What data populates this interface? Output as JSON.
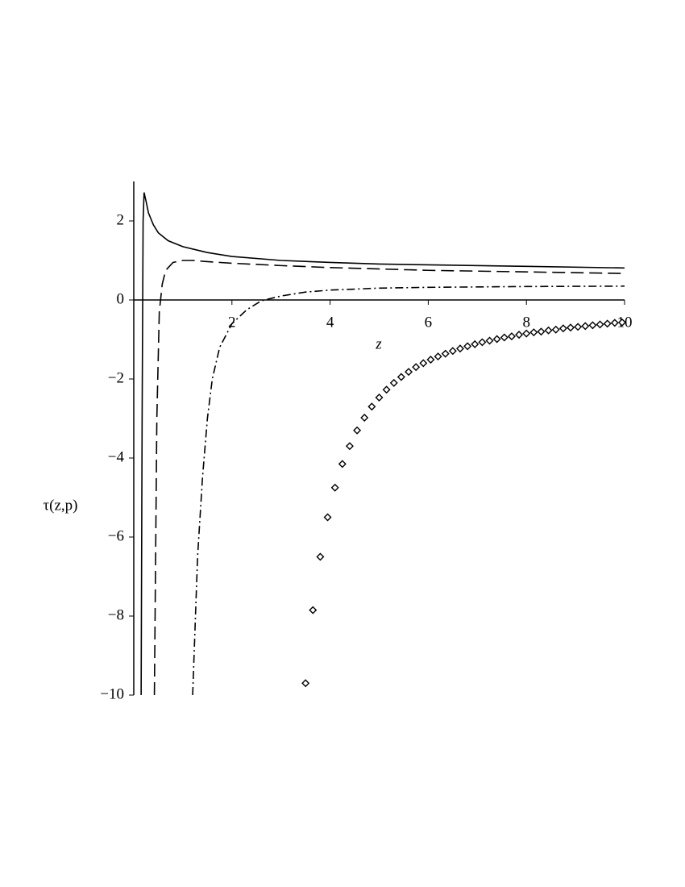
{
  "chart_data": {
    "type": "line",
    "xlabel": "z",
    "ylabel": "τ(z,p)",
    "xlim": [
      0,
      10
    ],
    "ylim": [
      -10,
      3
    ],
    "xticks": [
      2,
      4,
      6,
      8,
      10
    ],
    "yticks": [
      {
        "value": -10,
        "label": "−10"
      },
      {
        "value": -8,
        "label": "−8"
      },
      {
        "value": -6,
        "label": "−6"
      },
      {
        "value": -4,
        "label": "−4"
      },
      {
        "value": -2,
        "label": "−2"
      },
      0,
      2
    ],
    "series": [
      {
        "type": "line",
        "dash": "solid",
        "color": "#000000",
        "x": [
          0.15,
          0.17,
          0.19,
          0.21,
          0.25,
          0.3,
          0.4,
          0.5,
          0.7,
          1,
          1.5,
          2,
          3,
          4,
          5,
          6,
          8,
          10
        ],
        "values": [
          -10,
          -3,
          2,
          2.72,
          2.5,
          2.2,
          1.9,
          1.7,
          1.5,
          1.35,
          1.2,
          1.1,
          1.0,
          0.95,
          0.91,
          0.89,
          0.85,
          0.81
        ]
      },
      {
        "type": "line",
        "dash": "dashed",
        "color": "#000000",
        "x": [
          0.42,
          0.47,
          0.52,
          0.58,
          0.65,
          0.8,
          1,
          1.2,
          1.5,
          2,
          3,
          4,
          6,
          8,
          10
        ],
        "values": [
          -10,
          -3,
          -0.3,
          0.4,
          0.75,
          0.95,
          1.0,
          1.0,
          0.97,
          0.93,
          0.87,
          0.82,
          0.75,
          0.71,
          0.67
        ]
      },
      {
        "type": "line",
        "dash": "dashdot",
        "color": "#000000",
        "x": [
          1.2,
          1.3,
          1.4,
          1.5,
          1.6,
          1.75,
          2,
          2.3,
          2.6,
          3,
          3.5,
          4,
          5,
          6,
          8,
          10
        ],
        "values": [
          -10,
          -6.5,
          -4.5,
          -3,
          -2,
          -1.2,
          -0.6,
          -0.25,
          -0.02,
          0.1,
          0.2,
          0.25,
          0.3,
          0.32,
          0.34,
          0.35
        ]
      },
      {
        "type": "scatter",
        "marker": "diamond",
        "color": "#000000",
        "x": [
          3.5,
          3.65,
          3.8,
          3.95,
          4.1,
          4.25,
          4.4,
          4.55,
          4.7,
          4.85,
          5.0,
          5.15,
          5.3,
          5.45,
          5.6,
          5.75,
          5.9,
          6.05,
          6.2,
          6.35,
          6.5,
          6.65,
          6.8,
          6.95,
          7.1,
          7.25,
          7.4,
          7.55,
          7.7,
          7.85,
          8.0,
          8.15,
          8.3,
          8.45,
          8.6,
          8.75,
          8.9,
          9.05,
          9.2,
          9.35,
          9.5,
          9.65,
          9.8,
          9.95
        ],
        "values": [
          -9.7,
          -7.85,
          -6.5,
          -5.5,
          -4.75,
          -4.15,
          -3.7,
          -3.3,
          -2.98,
          -2.7,
          -2.47,
          -2.27,
          -2.1,
          -1.95,
          -1.82,
          -1.7,
          -1.6,
          -1.51,
          -1.43,
          -1.36,
          -1.29,
          -1.23,
          -1.17,
          -1.12,
          -1.07,
          -1.03,
          -0.99,
          -0.95,
          -0.92,
          -0.88,
          -0.85,
          -0.82,
          -0.8,
          -0.77,
          -0.75,
          -0.72,
          -0.7,
          -0.68,
          -0.66,
          -0.64,
          -0.62,
          -0.6,
          -0.58,
          -0.57
        ]
      }
    ]
  }
}
